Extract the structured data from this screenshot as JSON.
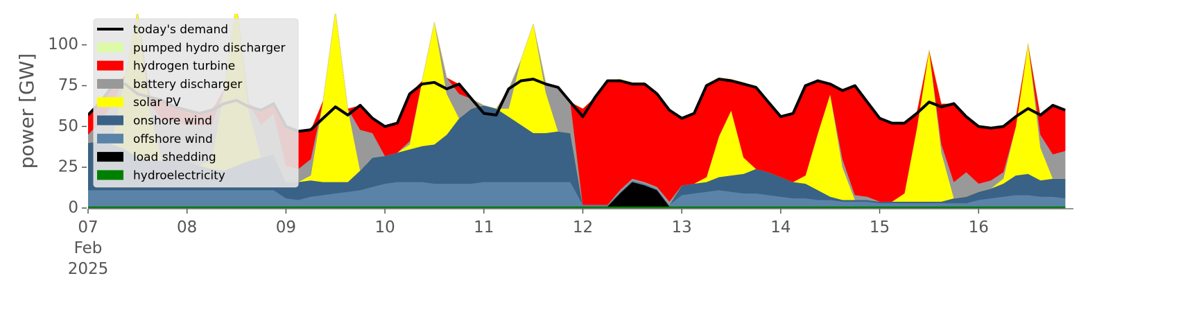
{
  "chart_data": {
    "type": "stacked_area",
    "y_label": "power [GW]",
    "legend": "upper left",
    "x": [
      "2025-02-07T00:00",
      "2025-02-07T03:00",
      "2025-02-07T06:00",
      "2025-02-07T09:00",
      "2025-02-07T12:00",
      "2025-02-07T15:00",
      "2025-02-07T18:00",
      "2025-02-07T21:00",
      "2025-02-08T00:00",
      "2025-02-08T03:00",
      "2025-02-08T06:00",
      "2025-02-08T09:00",
      "2025-02-08T12:00",
      "2025-02-08T15:00",
      "2025-02-08T18:00",
      "2025-02-08T21:00",
      "2025-02-09T00:00",
      "2025-02-09T03:00",
      "2025-02-09T06:00",
      "2025-02-09T09:00",
      "2025-02-09T12:00",
      "2025-02-09T15:00",
      "2025-02-09T18:00",
      "2025-02-09T21:00",
      "2025-02-10T00:00",
      "2025-02-10T03:00",
      "2025-02-10T06:00",
      "2025-02-10T09:00",
      "2025-02-10T12:00",
      "2025-02-10T15:00",
      "2025-02-10T18:00",
      "2025-02-10T21:00",
      "2025-02-11T00:00",
      "2025-02-11T03:00",
      "2025-02-11T06:00",
      "2025-02-11T09:00",
      "2025-02-11T12:00",
      "2025-02-11T15:00",
      "2025-02-11T18:00",
      "2025-02-11T21:00",
      "2025-02-12T00:00",
      "2025-02-12T03:00",
      "2025-02-12T06:00",
      "2025-02-12T09:00",
      "2025-02-12T12:00",
      "2025-02-12T15:00",
      "2025-02-12T18:00",
      "2025-02-12T21:00",
      "2025-02-13T00:00",
      "2025-02-13T03:00",
      "2025-02-13T06:00",
      "2025-02-13T09:00",
      "2025-02-13T12:00",
      "2025-02-13T15:00",
      "2025-02-13T18:00",
      "2025-02-13T21:00",
      "2025-02-14T00:00",
      "2025-02-14T03:00",
      "2025-02-14T06:00",
      "2025-02-14T09:00",
      "2025-02-14T12:00",
      "2025-02-14T15:00",
      "2025-02-14T18:00",
      "2025-02-14T21:00",
      "2025-02-15T00:00",
      "2025-02-15T03:00",
      "2025-02-15T06:00",
      "2025-02-15T09:00",
      "2025-02-15T12:00",
      "2025-02-15T15:00",
      "2025-02-15T18:00",
      "2025-02-15T21:00",
      "2025-02-16T00:00",
      "2025-02-16T03:00",
      "2025-02-16T06:00",
      "2025-02-16T09:00",
      "2025-02-16T12:00",
      "2025-02-16T15:00",
      "2025-02-16T18:00",
      "2025-02-16T21:00"
    ],
    "xlim": [
      "2025-02-07T00:00",
      "2025-02-16T23:00"
    ],
    "xticks": [
      {
        "value": "2025-02-07T00:00",
        "label": "07\nFeb\n2025"
      },
      {
        "value": "2025-02-08T00:00",
        "label": "08"
      },
      {
        "value": "2025-02-09T00:00",
        "label": "09"
      },
      {
        "value": "2025-02-10T00:00",
        "label": "10"
      },
      {
        "value": "2025-02-11T00:00",
        "label": "11"
      },
      {
        "value": "2025-02-12T00:00",
        "label": "12"
      },
      {
        "value": "2025-02-13T00:00",
        "label": "13"
      },
      {
        "value": "2025-02-14T00:00",
        "label": "14"
      },
      {
        "value": "2025-02-15T00:00",
        "label": "15"
      },
      {
        "value": "2025-02-16T00:00",
        "label": "16"
      }
    ],
    "ylim": [
      0,
      119
    ],
    "yticks": [
      0,
      25,
      50,
      75,
      100
    ],
    "series": [
      {
        "name": "hydroelectricity",
        "color": "#008000",
        "values": [
          1,
          1,
          1,
          1,
          1,
          1,
          1,
          1,
          1,
          1,
          1,
          1,
          1,
          1,
          1,
          1,
          1,
          1,
          1,
          1,
          1,
          1,
          1,
          1,
          1,
          1,
          1,
          1,
          1,
          1,
          1,
          1,
          1,
          1,
          1,
          1,
          1,
          1,
          1,
          1,
          1,
          1,
          1,
          1,
          1,
          1,
          1,
          1,
          1,
          1,
          1,
          1,
          1,
          1,
          1,
          1,
          1,
          1,
          1,
          1,
          1,
          1,
          1,
          1,
          1,
          1,
          1,
          1,
          1,
          1,
          1,
          1,
          1,
          1,
          1,
          1,
          1,
          1,
          1,
          1
        ]
      },
      {
        "name": "load shedding",
        "color": "#000000",
        "values": [
          0,
          0,
          0,
          0,
          0,
          0,
          0,
          0,
          0,
          0,
          0,
          0,
          0,
          0,
          0,
          0,
          0,
          0,
          0,
          0,
          0,
          0,
          0,
          0,
          0,
          0,
          0,
          0,
          0,
          0,
          0,
          0,
          0,
          0,
          0,
          0,
          0,
          0,
          0,
          0,
          0,
          0,
          0,
          8,
          15,
          13,
          10,
          0,
          0,
          0,
          0,
          0,
          0,
          0,
          0,
          0,
          0,
          0,
          0,
          0,
          0,
          0,
          0,
          0,
          0,
          0,
          0,
          0,
          0,
          0,
          0,
          0,
          0,
          0,
          0,
          0,
          0,
          0,
          0,
          0
        ]
      },
      {
        "name": "offshore wind",
        "color": "#5b83a8",
        "values": [
          10,
          10,
          10,
          10,
          10,
          10,
          10,
          10,
          10,
          10,
          10,
          10,
          10,
          10,
          10,
          10,
          5,
          4,
          6,
          7,
          8,
          9,
          10,
          12,
          14,
          15,
          15,
          15,
          14,
          14,
          14,
          14,
          15,
          15,
          15,
          15,
          15,
          15,
          15,
          15,
          1,
          1,
          1,
          1,
          1,
          1,
          1,
          1,
          7,
          8,
          9,
          10,
          9,
          8,
          8,
          7,
          6,
          5,
          5,
          4,
          4,
          3,
          3,
          3,
          2,
          2,
          2,
          2,
          2,
          2,
          2,
          2,
          4,
          5,
          6,
          7,
          7,
          6,
          6,
          5
        ]
      },
      {
        "name": "onshore wind",
        "color": "#3a6186",
        "values": [
          29,
          30,
          28,
          25,
          20,
          18,
          18,
          20,
          18,
          15,
          13,
          12,
          15,
          18,
          20,
          22,
          10,
          11,
          10,
          8,
          7,
          6,
          12,
          18,
          17,
          18,
          20,
          22,
          24,
          30,
          40,
          46,
          47,
          45,
          40,
          35,
          30,
          30,
          31,
          30,
          0,
          0,
          0,
          0,
          0,
          0,
          0,
          0,
          6,
          6,
          6,
          8,
          10,
          12,
          15,
          14,
          12,
          10,
          9,
          6,
          2,
          1,
          1,
          1,
          1,
          1,
          1,
          1,
          1,
          1,
          3,
          4,
          5,
          6,
          8,
          12,
          13,
          10,
          11,
          12
        ]
      },
      {
        "name": "solar PV",
        "color": "#ffff00",
        "values": [
          0,
          0,
          5,
          45,
          90,
          30,
          0,
          0,
          0,
          0,
          5,
          50,
          100,
          30,
          0,
          0,
          0,
          0,
          3,
          50,
          105,
          45,
          0,
          0,
          0,
          0,
          3,
          40,
          75,
          25,
          0,
          0,
          0,
          0,
          5,
          40,
          67,
          25,
          0,
          0,
          0,
          0,
          0,
          0,
          0,
          0,
          0,
          0,
          0,
          0,
          3,
          25,
          40,
          10,
          0,
          0,
          0,
          0,
          5,
          35,
          63,
          20,
          0,
          0,
          0,
          0,
          5,
          45,
          93,
          30,
          0,
          0,
          0,
          0,
          3,
          30,
          80,
          20,
          0,
          0
        ]
      },
      {
        "name": "battery discharger",
        "color": "#999999",
        "values": [
          5,
          12,
          20,
          0,
          0,
          5,
          25,
          22,
          22,
          25,
          22,
          0,
          0,
          5,
          20,
          25,
          10,
          8,
          10,
          0,
          0,
          0,
          25,
          15,
          0,
          0,
          2,
          0,
          0,
          10,
          15,
          6,
          0,
          0,
          12,
          0,
          0,
          6,
          27,
          19,
          0,
          0,
          0,
          1,
          1,
          1,
          1,
          2,
          0,
          0,
          0,
          0,
          0,
          0,
          0,
          0,
          0,
          0,
          0,
          0,
          0,
          5,
          3,
          2,
          0,
          0,
          0,
          0,
          0,
          5,
          10,
          15,
          5,
          5,
          4,
          0,
          0,
          8,
          15,
          17
        ]
      },
      {
        "name": "hydrogen turbine",
        "color": "#ff0000",
        "values": [
          12,
          13,
          12,
          0,
          0,
          5,
          12,
          9,
          9,
          8,
          9,
          0,
          0,
          0,
          9,
          6,
          24,
          23,
          18,
          0,
          0,
          0,
          15,
          9,
          18,
          18,
          29,
          0,
          0,
          0,
          6,
          0,
          0,
          0,
          0,
          0,
          0,
          0,
          0,
          0,
          59,
          66,
          76,
          68,
          59,
          61,
          58,
          57,
          41,
          43,
          57,
          36,
          19,
          46,
          50,
          43,
          37,
          42,
          55,
          33,
          6,
          43,
          67,
          58,
          51,
          48,
          43,
          10,
          0,
          25,
          48,
          34,
          35,
          32,
          28,
          6,
          0,
          12,
          30,
          25
        ]
      },
      {
        "name": "pumped hydro discharger",
        "color": "#dcfaa8",
        "values": [
          0,
          0,
          0,
          0,
          0,
          0,
          0,
          0,
          0,
          0,
          0,
          0,
          0,
          0,
          0,
          0,
          0,
          0,
          0,
          0,
          0,
          0,
          0,
          0,
          0,
          0,
          0,
          0,
          0,
          0,
          0,
          0,
          0,
          0,
          0,
          0,
          0,
          0,
          0,
          0,
          0,
          0,
          0,
          0,
          0,
          0,
          0,
          0,
          0,
          0,
          0,
          0,
          0,
          0,
          0,
          0,
          0,
          0,
          0,
          0,
          0,
          0,
          0,
          0,
          0,
          0,
          0,
          0,
          0,
          0,
          0,
          0,
          0,
          0,
          0,
          0,
          0,
          0,
          0,
          0
        ]
      }
    ],
    "demand": {
      "name": "today's demand",
      "color": "#000000",
      "values": [
        57,
        65,
        75,
        76,
        70,
        68,
        66,
        62,
        60,
        58,
        60,
        64,
        66,
        62,
        60,
        64,
        50,
        47,
        48,
        55,
        62,
        57,
        63,
        55,
        50,
        52,
        70,
        76,
        77,
        73,
        76,
        67,
        58,
        57,
        73,
        78,
        79,
        76,
        74,
        65,
        56,
        68,
        78,
        78,
        76,
        76,
        70,
        60,
        55,
        58,
        75,
        79,
        78,
        76,
        74,
        65,
        56,
        58,
        75,
        78,
        76,
        72,
        75,
        65,
        55,
        52,
        52,
        58,
        65,
        62,
        64,
        56,
        50,
        49,
        50,
        56,
        61,
        57,
        63,
        60
      ]
    }
  }
}
